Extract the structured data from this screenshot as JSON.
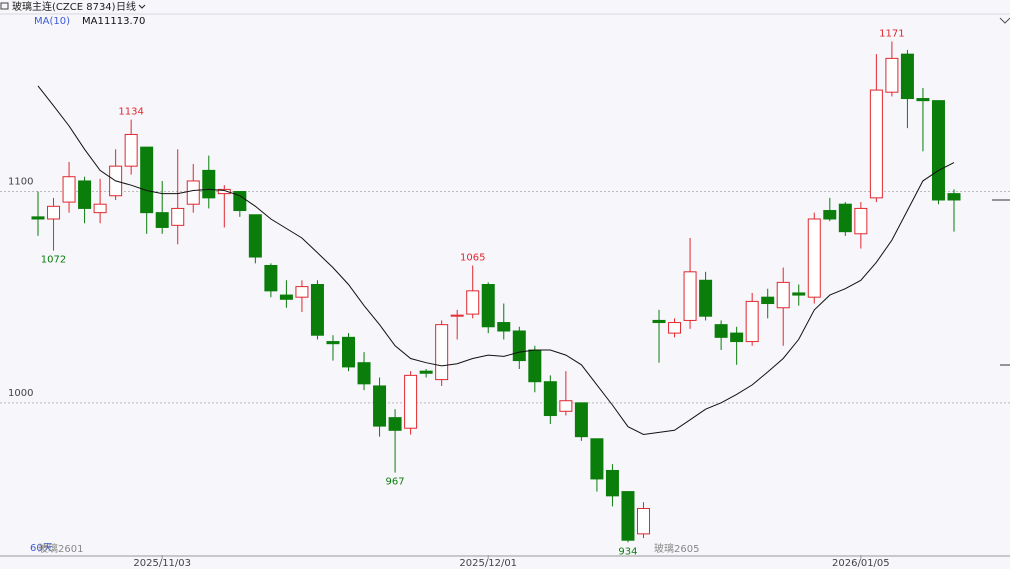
{
  "chart_data": {
    "type": "candlestick",
    "title": "玻璃主连(CZCE 8734)",
    "period": "日线",
    "range_label": "60天",
    "contracts": [
      "玻璃2601",
      "玻璃2605"
    ],
    "up_color": "#e0282e",
    "down_color": "#0b7d0b",
    "categories": [
      null,
      null,
      null,
      null,
      null,
      null,
      null,
      null,
      "2025/11/03",
      null,
      null,
      null,
      null,
      null,
      null,
      null,
      null,
      null,
      null,
      null,
      null,
      null,
      null,
      null,
      null,
      null,
      null,
      null,
      null,
      "2025/12/01",
      null,
      null,
      null,
      null,
      null,
      null,
      null,
      null,
      null,
      null,
      null,
      null,
      null,
      null,
      null,
      null,
      null,
      null,
      null,
      null,
      null,
      null,
      null,
      "2026/01/05",
      null,
      null,
      null,
      null,
      null,
      null
    ],
    "open": [
      1088,
      1087,
      1095,
      1105,
      1090,
      1098,
      1112,
      1121,
      1090,
      1084,
      1094,
      1110,
      1099,
      1100,
      1089,
      1065,
      1051,
      1050,
      1056,
      1029,
      1031,
      1019,
      1008,
      993,
      988,
      1015,
      1011,
      1041,
      1042,
      1056,
      1038,
      1034,
      1025,
      1010,
      996,
      1000,
      983,
      968,
      958,
      938,
      1039,
      1033,
      1039,
      1058,
      1037,
      1033,
      1029,
      1050,
      1045,
      1052,
      1050,
      1091,
      1094,
      1080,
      1097,
      1147,
      1165,
      1144,
      1143,
      1099
    ],
    "high": [
      1100,
      1097,
      1114,
      1107,
      1106,
      1120,
      1134,
      1121,
      1105,
      1120,
      1113,
      1117,
      1103,
      1100,
      1089,
      1066,
      1058,
      1058,
      1058,
      1032,
      1033,
      1024,
      1012,
      997,
      1015,
      1016,
      1039,
      1044,
      1065,
      1057,
      1047,
      1036,
      1027,
      1013,
      1015,
      1000,
      983,
      971,
      958,
      953,
      1044,
      1040,
      1078,
      1062,
      1039,
      1036,
      1052,
      1054,
      1064,
      1056,
      1090,
      1097,
      1095,
      1095,
      1165,
      1171,
      1167,
      1149,
      1143,
      1101
    ],
    "low": [
      1079,
      1072,
      1090,
      1085,
      1085,
      1096,
      1108,
      1080,
      1080,
      1075,
      1090,
      1092,
      1083,
      1088,
      1066,
      1050,
      1045,
      1043,
      1030,
      1020,
      1015,
      1006,
      984,
      967,
      985,
      1012,
      1008,
      1030,
      1040,
      1033,
      1030,
      1016,
      1005,
      990,
      994,
      982,
      958,
      951,
      934,
      936,
      1019,
      1031,
      1035,
      1039,
      1025,
      1018,
      1027,
      1040,
      1027,
      1046,
      1047,
      1086,
      1079,
      1073,
      1095,
      1145,
      1130,
      1119,
      1094,
      1081
    ],
    "close": [
      1087,
      1093,
      1107,
      1092,
      1094,
      1112,
      1127,
      1090,
      1083,
      1092,
      1105,
      1097,
      1101,
      1091,
      1069,
      1053,
      1049,
      1055,
      1032,
      1028,
      1017,
      1009,
      989,
      987,
      1013,
      1014,
      1037,
      1041.5,
      1053,
      1036,
      1034,
      1020,
      1010,
      994,
      1001,
      984,
      964,
      956,
      935,
      950,
      1038,
      1038,
      1062,
      1041,
      1031,
      1029,
      1048,
      1047,
      1057,
      1051,
      1087,
      1087,
      1081,
      1092,
      1148,
      1163,
      1144,
      1143,
      1096,
      1096
    ],
    "ma": {
      "indicator": "MA(10)",
      "name": "MA1",
      "last_label": "1113.70",
      "color": "#111111",
      "values": [
        1150,
        1140.6,
        1131,
        1120,
        1110,
        1105,
        1103,
        1100.5,
        1099,
        1099,
        1100.5,
        1101,
        1100.5,
        1098,
        1093,
        1087,
        1082.5,
        1078,
        1071,
        1064,
        1056,
        1046,
        1037,
        1027,
        1021,
        1019,
        1017.5,
        1018.5,
        1021,
        1022.6,
        1022,
        1024,
        1025,
        1025,
        1022.6,
        1018,
        1008.5,
        999,
        988.7,
        985,
        986,
        987,
        992,
        997,
        1000,
        1004,
        1008.5,
        1014.6,
        1021,
        1030,
        1044,
        1051,
        1054,
        1058,
        1066.5,
        1077,
        1091,
        1105,
        1110,
        1113.7
      ]
    },
    "ylim": [
      928,
      1184
    ],
    "yticks": [
      1000,
      1100
    ],
    "grid": true
  }
}
